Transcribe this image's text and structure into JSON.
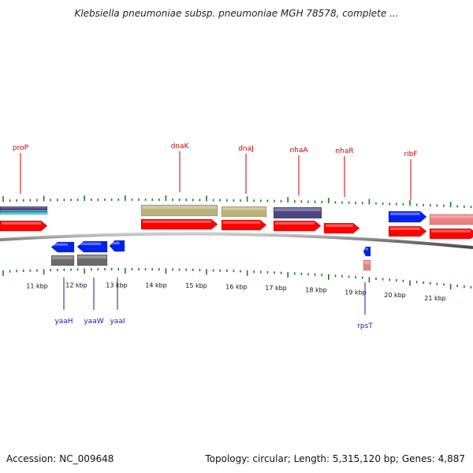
{
  "title": "Klebsiella pneumoniae subsp. pneumoniae MGH 78578, complete ...",
  "accession_text": "Accession: NC_009648",
  "stats_text": "Topology: circular; Length: 5,315,120 bp; Genes: 4,887",
  "colors": {
    "forward_cds": "#ff0000",
    "reverse_cds": "#0022ee",
    "cog_olive": "#b9b279",
    "cog_purple": "#4a4685",
    "cog_gray": "#6b6b6b",
    "cog_pink": "#ee8080",
    "cog_cyan": "#33cccc",
    "label_top": "#cc0000",
    "label_bottom": "#1a1aaa",
    "tick": "#1f7a1f",
    "backbone": "#888888"
  },
  "scale_ticks": [
    {
      "label": "11 kbp"
    },
    {
      "label": "12 kbp"
    },
    {
      "label": "13 kbp"
    },
    {
      "label": "14 kbp"
    },
    {
      "label": "15 kbp"
    },
    {
      "label": "16 kbp"
    },
    {
      "label": "17 kbp"
    },
    {
      "label": "18 kbp"
    },
    {
      "label": "19 kbp"
    },
    {
      "label": "20 kbp"
    },
    {
      "label": "21 kbp"
    }
  ],
  "gene_labels_top": [
    {
      "name": "proP"
    },
    {
      "name": "dnaK"
    },
    {
      "name": "dnaJ"
    },
    {
      "name": "nhaA"
    },
    {
      "name": "nhaR"
    },
    {
      "name": "ribF"
    }
  ],
  "gene_labels_bottom": [
    {
      "name": "yaaH"
    },
    {
      "name": "yaaW"
    },
    {
      "name": "yaaI"
    },
    {
      "name": "rpsT"
    }
  ]
}
